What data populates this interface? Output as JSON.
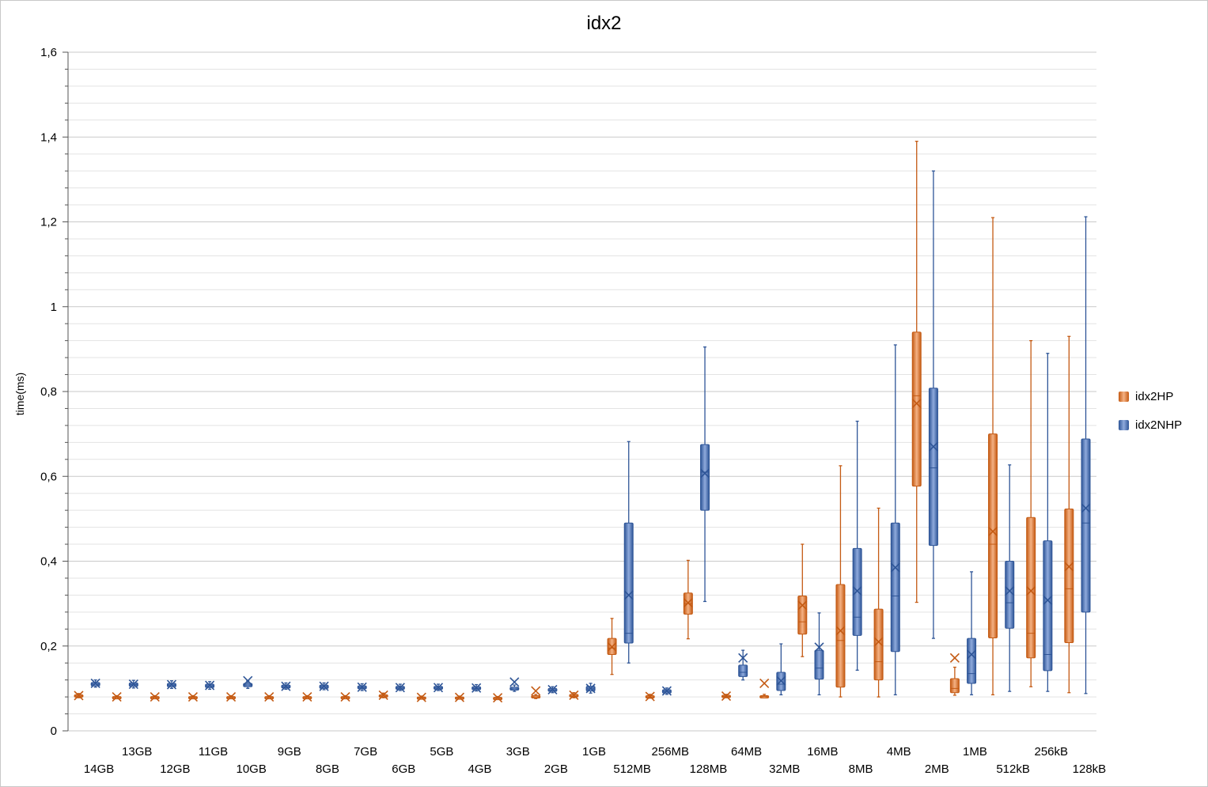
{
  "chart_data": {
    "type": "box",
    "title": "idx2",
    "ylabel": "time(ms)",
    "xlabel": "",
    "ylim": [
      0,
      1.6
    ],
    "yticks": [
      "0",
      "0,2",
      "0,4",
      "0,6",
      "0,8",
      "1",
      "1,2",
      "1,4",
      "1,6"
    ],
    "grid": true,
    "legend_position": "right",
    "categories": [
      "14GB",
      "13GB",
      "12GB",
      "11GB",
      "10GB",
      "9GB",
      "8GB",
      "7GB",
      "6GB",
      "5GB",
      "4GB",
      "3GB",
      "2GB",
      "1GB",
      "512MB",
      "256MB",
      "128MB",
      "64MB",
      "32MB",
      "16MB",
      "8MB",
      "4MB",
      "2MB",
      "1MB",
      "512kB",
      "256kB",
      "128kB"
    ],
    "series": [
      {
        "name": "idx2HP",
        "color": "#c45a13",
        "boxes": [
          {
            "min": 0.078,
            "q1": 0.08,
            "median": 0.082,
            "q3": 0.085,
            "max": 0.088,
            "mean": 0.083
          },
          {
            "min": 0.077,
            "q1": 0.078,
            "median": 0.079,
            "q3": 0.081,
            "max": 0.083,
            "mean": 0.08
          },
          {
            "min": 0.077,
            "q1": 0.078,
            "median": 0.079,
            "q3": 0.081,
            "max": 0.083,
            "mean": 0.08
          },
          {
            "min": 0.077,
            "q1": 0.078,
            "median": 0.079,
            "q3": 0.081,
            "max": 0.083,
            "mean": 0.08
          },
          {
            "min": 0.077,
            "q1": 0.078,
            "median": 0.079,
            "q3": 0.081,
            "max": 0.083,
            "mean": 0.08
          },
          {
            "min": 0.077,
            "q1": 0.078,
            "median": 0.079,
            "q3": 0.081,
            "max": 0.083,
            "mean": 0.08
          },
          {
            "min": 0.077,
            "q1": 0.078,
            "median": 0.079,
            "q3": 0.081,
            "max": 0.083,
            "mean": 0.08
          },
          {
            "min": 0.077,
            "q1": 0.078,
            "median": 0.079,
            "q3": 0.081,
            "max": 0.083,
            "mean": 0.08
          },
          {
            "min": 0.078,
            "q1": 0.08,
            "median": 0.082,
            "q3": 0.085,
            "max": 0.089,
            "mean": 0.084
          },
          {
            "min": 0.076,
            "q1": 0.077,
            "median": 0.078,
            "q3": 0.08,
            "max": 0.082,
            "mean": 0.079
          },
          {
            "min": 0.076,
            "q1": 0.077,
            "median": 0.078,
            "q3": 0.08,
            "max": 0.082,
            "mean": 0.079
          },
          {
            "min": 0.075,
            "q1": 0.076,
            "median": 0.077,
            "q3": 0.079,
            "max": 0.081,
            "mean": 0.078
          },
          {
            "min": 0.076,
            "q1": 0.078,
            "median": 0.08,
            "q3": 0.083,
            "max": 0.086,
            "mean": 0.094
          },
          {
            "min": 0.078,
            "q1": 0.08,
            "median": 0.082,
            "q3": 0.086,
            "max": 0.09,
            "mean": 0.084
          },
          {
            "min": 0.133,
            "q1": 0.18,
            "median": 0.195,
            "q3": 0.218,
            "max": 0.265,
            "mean": 0.198
          },
          {
            "min": 0.077,
            "q1": 0.078,
            "median": 0.08,
            "q3": 0.083,
            "max": 0.086,
            "mean": 0.081
          },
          {
            "min": 0.217,
            "q1": 0.275,
            "median": 0.3,
            "q3": 0.325,
            "max": 0.402,
            "mean": 0.302
          },
          {
            "min": 0.078,
            "q1": 0.079,
            "median": 0.081,
            "q3": 0.084,
            "max": 0.086,
            "mean": 0.082
          },
          {
            "min": 0.079,
            "q1": 0.08,
            "median": 0.081,
            "q3": 0.083,
            "max": 0.086,
            "mean": 0.112
          },
          {
            "min": 0.175,
            "q1": 0.228,
            "median": 0.257,
            "q3": 0.318,
            "max": 0.44,
            "mean": 0.296
          },
          {
            "min": 0.08,
            "q1": 0.103,
            "median": 0.213,
            "q3": 0.345,
            "max": 0.625,
            "mean": 0.236
          },
          {
            "min": 0.08,
            "q1": 0.12,
            "median": 0.163,
            "q3": 0.287,
            "max": 0.525,
            "mean": 0.21
          },
          {
            "min": 0.303,
            "q1": 0.577,
            "median": 0.79,
            "q3": 0.94,
            "max": 1.39,
            "mean": 0.772
          },
          {
            "min": 0.084,
            "q1": 0.09,
            "median": 0.1,
            "q3": 0.123,
            "max": 0.15,
            "mean": 0.172
          },
          {
            "min": 0.085,
            "q1": 0.219,
            "median": 0.44,
            "q3": 0.7,
            "max": 1.21,
            "mean": 0.47
          },
          {
            "min": 0.104,
            "q1": 0.172,
            "median": 0.23,
            "q3": 0.503,
            "max": 0.92,
            "mean": 0.33
          },
          {
            "min": 0.09,
            "q1": 0.208,
            "median": 0.335,
            "q3": 0.523,
            "max": 0.93,
            "mean": 0.387
          }
        ]
      },
      {
        "name": "idx2NHP",
        "color": "#2e5597",
        "boxes": [
          {
            "min": 0.103,
            "q1": 0.106,
            "median": 0.11,
            "q3": 0.114,
            "max": 0.12,
            "mean": 0.112
          },
          {
            "min": 0.101,
            "q1": 0.105,
            "median": 0.109,
            "q3": 0.113,
            "max": 0.119,
            "mean": 0.11
          },
          {
            "min": 0.1,
            "q1": 0.104,
            "median": 0.108,
            "q3": 0.112,
            "max": 0.118,
            "mean": 0.109
          },
          {
            "min": 0.098,
            "q1": 0.102,
            "median": 0.106,
            "q3": 0.11,
            "max": 0.116,
            "mean": 0.107
          },
          {
            "min": 0.1,
            "q1": 0.104,
            "median": 0.108,
            "q3": 0.112,
            "max": 0.118,
            "mean": 0.118
          },
          {
            "min": 0.098,
            "q1": 0.101,
            "median": 0.104,
            "q3": 0.108,
            "max": 0.113,
            "mean": 0.105
          },
          {
            "min": 0.097,
            "q1": 0.1,
            "median": 0.104,
            "q3": 0.108,
            "max": 0.113,
            "mean": 0.105
          },
          {
            "min": 0.095,
            "q1": 0.099,
            "median": 0.102,
            "q3": 0.106,
            "max": 0.111,
            "mean": 0.103
          },
          {
            "min": 0.095,
            "q1": 0.098,
            "median": 0.101,
            "q3": 0.105,
            "max": 0.11,
            "mean": 0.102
          },
          {
            "min": 0.095,
            "q1": 0.098,
            "median": 0.101,
            "q3": 0.105,
            "max": 0.11,
            "mean": 0.102
          },
          {
            "min": 0.094,
            "q1": 0.097,
            "median": 0.1,
            "q3": 0.104,
            "max": 0.109,
            "mean": 0.101
          },
          {
            "min": 0.093,
            "q1": 0.096,
            "median": 0.099,
            "q3": 0.103,
            "max": 0.108,
            "mean": 0.115
          },
          {
            "min": 0.09,
            "q1": 0.093,
            "median": 0.096,
            "q3": 0.1,
            "max": 0.104,
            "mean": 0.097
          },
          {
            "min": 0.089,
            "q1": 0.094,
            "median": 0.099,
            "q3": 0.105,
            "max": 0.112,
            "mean": 0.1
          },
          {
            "min": 0.16,
            "q1": 0.207,
            "median": 0.23,
            "q3": 0.49,
            "max": 0.682,
            "mean": 0.32
          },
          {
            "min": 0.086,
            "q1": 0.089,
            "median": 0.093,
            "q3": 0.097,
            "max": 0.101,
            "mean": 0.094
          },
          {
            "min": 0.305,
            "q1": 0.52,
            "median": 0.61,
            "q3": 0.675,
            "max": 0.905,
            "mean": 0.607
          },
          {
            "min": 0.12,
            "q1": 0.128,
            "median": 0.138,
            "q3": 0.155,
            "max": 0.19,
            "mean": 0.172
          },
          {
            "min": 0.085,
            "q1": 0.095,
            "median": 0.11,
            "q3": 0.138,
            "max": 0.205,
            "mean": 0.118
          },
          {
            "min": 0.085,
            "q1": 0.122,
            "median": 0.148,
            "q3": 0.19,
            "max": 0.278,
            "mean": 0.197
          },
          {
            "min": 0.143,
            "q1": 0.225,
            "median": 0.268,
            "q3": 0.43,
            "max": 0.73,
            "mean": 0.33
          },
          {
            "min": 0.085,
            "q1": 0.187,
            "median": 0.318,
            "q3": 0.49,
            "max": 0.91,
            "mean": 0.385
          },
          {
            "min": 0.218,
            "q1": 0.437,
            "median": 0.62,
            "q3": 0.808,
            "max": 1.32,
            "mean": 0.67
          },
          {
            "min": 0.085,
            "q1": 0.112,
            "median": 0.135,
            "q3": 0.218,
            "max": 0.375,
            "mean": 0.18
          },
          {
            "min": 0.093,
            "q1": 0.242,
            "median": 0.302,
            "q3": 0.4,
            "max": 0.627,
            "mean": 0.33
          },
          {
            "min": 0.093,
            "q1": 0.142,
            "median": 0.18,
            "q3": 0.448,
            "max": 0.89,
            "mean": 0.308
          },
          {
            "min": 0.088,
            "q1": 0.28,
            "median": 0.49,
            "q3": 0.688,
            "max": 1.212,
            "mean": 0.525
          }
        ]
      }
    ]
  }
}
